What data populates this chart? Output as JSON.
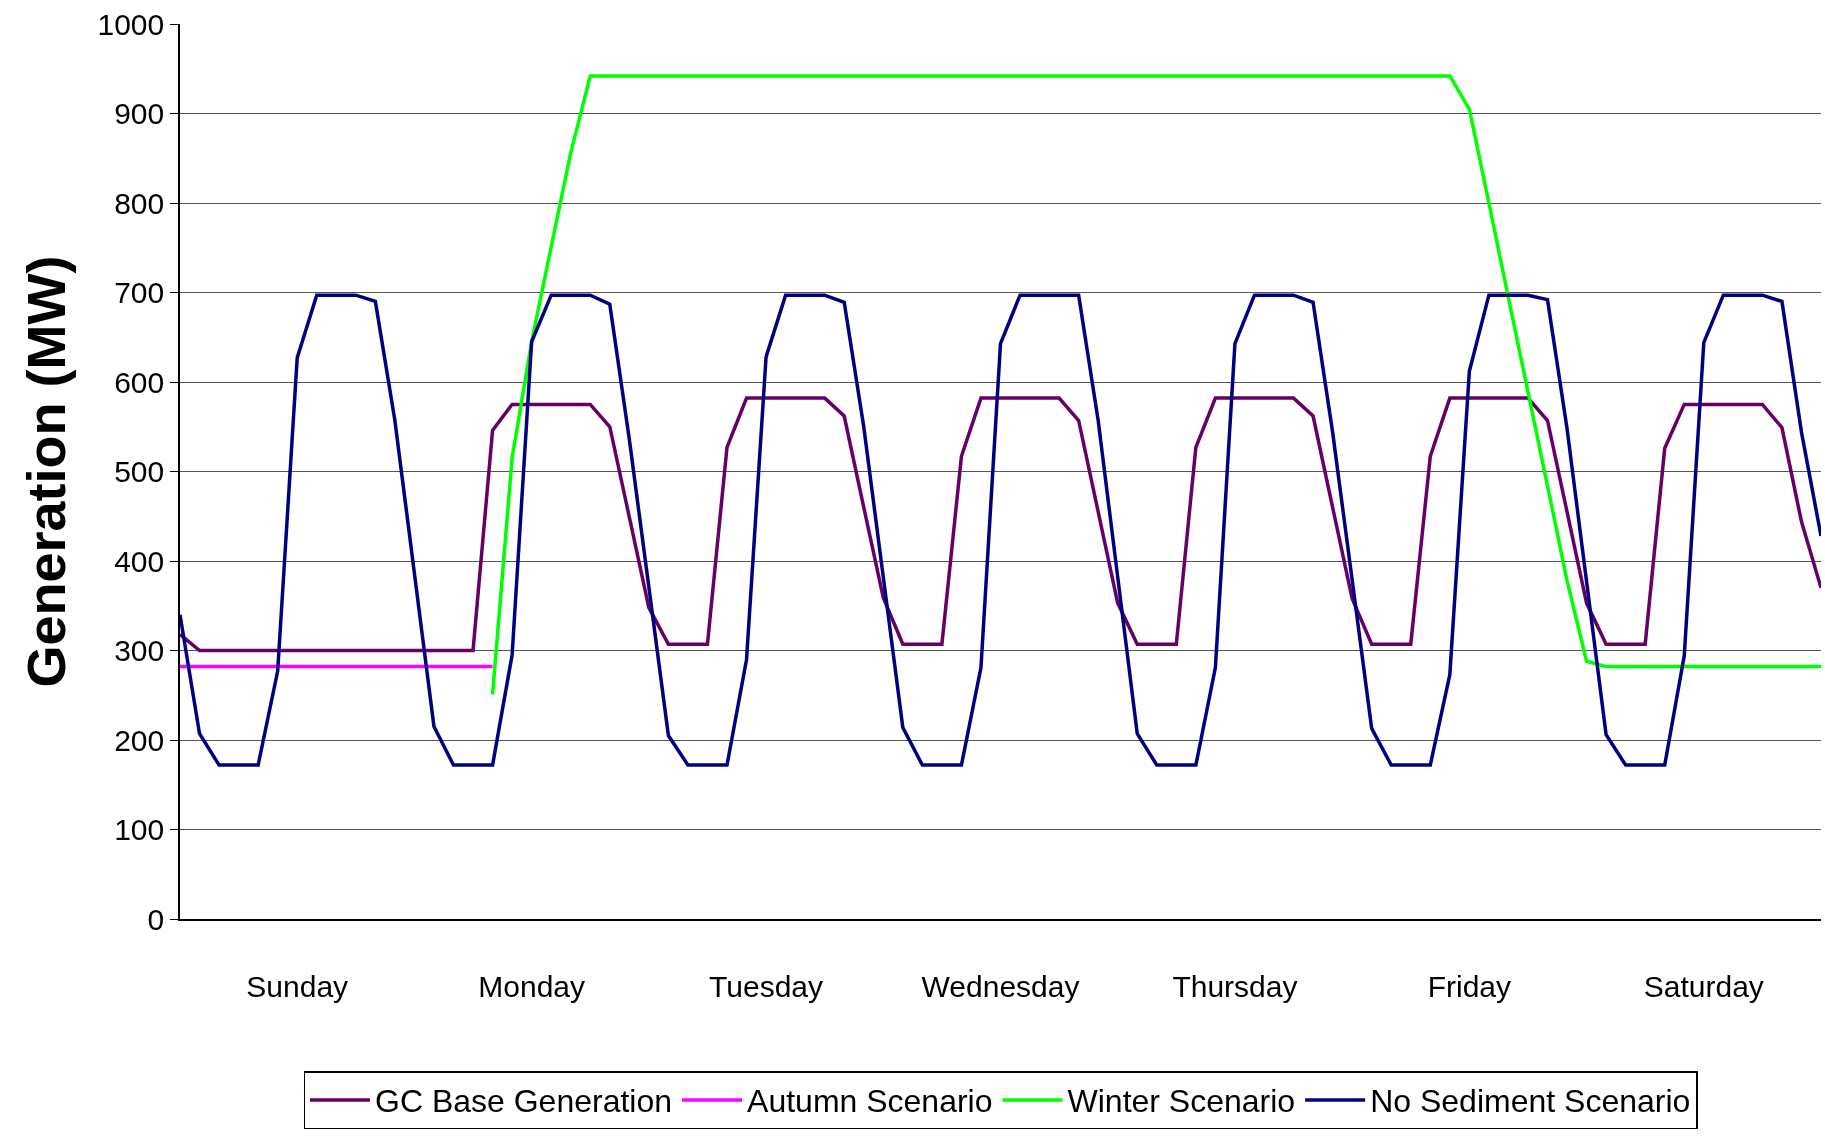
{
  "chart_data": {
    "type": "line",
    "ylabel": "Generation (MW)",
    "categories": [
      null,
      null,
      null,
      null,
      null,
      null,
      "Sunday",
      null,
      null,
      null,
      null,
      null,
      null,
      null,
      null,
      null,
      null,
      null,
      "Monday",
      null,
      null,
      null,
      null,
      null,
      null,
      null,
      null,
      null,
      null,
      null,
      "Tuesday",
      null,
      null,
      null,
      null,
      null,
      null,
      null,
      null,
      null,
      null,
      null,
      "Wednesday",
      null,
      null,
      null,
      null,
      null,
      null,
      null,
      null,
      null,
      null,
      null,
      "Thursday",
      null,
      null,
      null,
      null,
      null,
      null,
      null,
      null,
      null,
      null,
      null,
      "Friday",
      null,
      null,
      null,
      null,
      null,
      null,
      null,
      null,
      null,
      null,
      null,
      "Saturday",
      null,
      null,
      null,
      null,
      null,
      null
    ],
    "ylim": [
      0,
      1000
    ],
    "yticks": [
      0,
      100,
      200,
      300,
      400,
      500,
      600,
      700,
      800,
      900,
      1000
    ],
    "grid": "y",
    "legend": "bottom",
    "series": [
      {
        "name": "GC Base Generation",
        "color": "#660066",
        "values": [
          318,
          300,
          300,
          300,
          300,
          300,
          300,
          300,
          300,
          300,
          300,
          300,
          300,
          300,
          300,
          300,
          546,
          575,
          575,
          575,
          575,
          575,
          550,
          449,
          348,
          307,
          307,
          307,
          527,
          582,
          582,
          582,
          582,
          582,
          562,
          460,
          359,
          307,
          307,
          307,
          517,
          582,
          582,
          582,
          582,
          582,
          557,
          455,
          353,
          307,
          307,
          307,
          527,
          582,
          582,
          582,
          582,
          582,
          562,
          460,
          358,
          307,
          307,
          307,
          517,
          582,
          582,
          582,
          582,
          582,
          557,
          455,
          353,
          307,
          307,
          307,
          526,
          575,
          575,
          575,
          575,
          575,
          549,
          444,
          370
        ]
      },
      {
        "name": "Autumn Scenario",
        "color": "#ff00ff",
        "values": [
          282,
          282,
          282,
          282,
          282,
          282,
          282,
          282,
          282,
          282,
          282,
          282,
          282,
          282,
          282,
          282,
          282,
          null,
          null,
          null,
          null,
          null,
          null,
          null,
          null,
          null,
          null,
          null,
          null,
          null,
          null,
          null,
          null,
          null,
          null,
          null,
          null,
          null,
          null,
          null,
          null,
          null,
          null,
          null,
          null,
          null,
          null,
          null,
          null,
          null,
          null,
          null,
          null,
          null,
          null,
          null,
          null,
          null,
          null,
          null,
          null,
          null,
          null,
          null,
          null,
          null,
          null,
          null,
          null,
          null,
          null,
          null,
          null,
          null,
          null,
          null,
          null,
          null,
          null,
          null,
          null,
          null,
          null,
          null,
          null
        ]
      },
      {
        "name": "Winter Scenario",
        "color": "#00ff00",
        "values": [
          null,
          null,
          null,
          null,
          null,
          null,
          null,
          null,
          null,
          null,
          null,
          null,
          null,
          null,
          null,
          null,
          251,
          515,
          645,
          751,
          856,
          942,
          942,
          942,
          942,
          942,
          942,
          942,
          942,
          942,
          942,
          942,
          942,
          942,
          942,
          942,
          942,
          942,
          942,
          942,
          942,
          942,
          942,
          942,
          942,
          942,
          942,
          942,
          942,
          942,
          942,
          942,
          942,
          942,
          942,
          942,
          942,
          942,
          942,
          942,
          942,
          942,
          942,
          942,
          942,
          942,
          905,
          800,
          694,
          589,
          484,
          378,
          288,
          282,
          282,
          282,
          282,
          282,
          282,
          282,
          282,
          282,
          282,
          282,
          282
        ]
      },
      {
        "name": "No Sediment Scenario",
        "color": "#000080",
        "values": [
          340,
          207,
          172,
          172,
          172,
          277,
          627,
          697,
          697,
          697,
          690,
          557,
          386,
          215,
          172,
          172,
          172,
          295,
          645,
          697,
          697,
          697,
          687,
          536,
          371,
          205,
          172,
          172,
          172,
          290,
          628,
          697,
          697,
          697,
          689,
          550,
          382,
          214,
          172,
          172,
          172,
          281,
          643,
          697,
          697,
          697,
          697,
          557,
          382,
          207,
          172,
          172,
          172,
          281,
          643,
          697,
          697,
          697,
          689,
          544,
          379,
          213,
          172,
          172,
          172,
          273,
          612,
          697,
          697,
          697,
          692,
          548,
          377,
          206,
          172,
          172,
          172,
          294,
          644,
          697,
          697,
          697,
          690,
          544,
          428
        ]
      }
    ]
  }
}
